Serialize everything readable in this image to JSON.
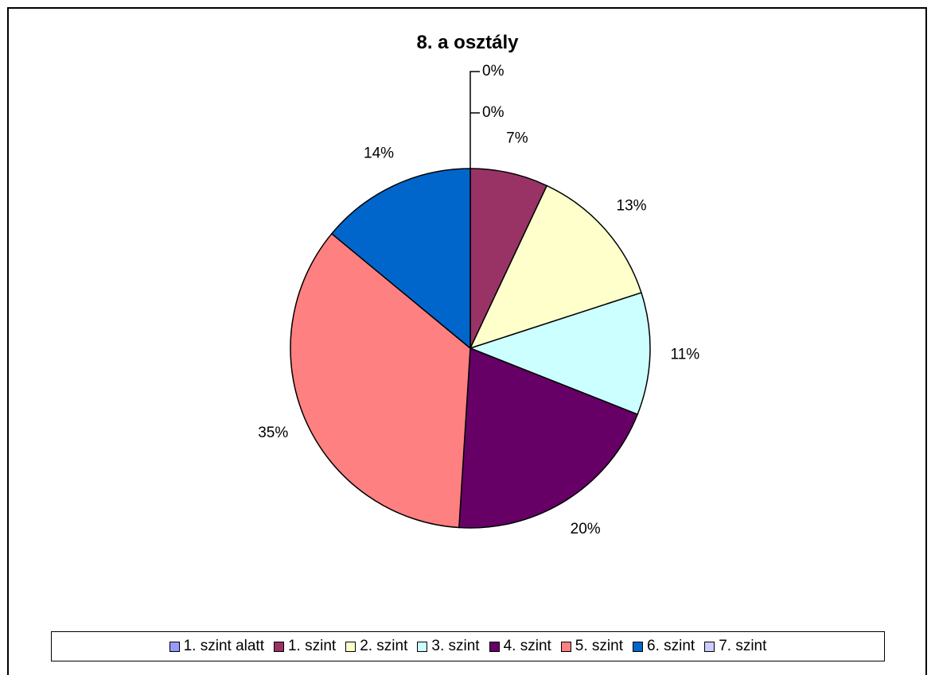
{
  "chart_data": {
    "type": "pie",
    "title": "8. a osztály",
    "slices": [
      {
        "label": "1. szint alatt",
        "value": 0,
        "display": "0%",
        "color": "#9999FF"
      },
      {
        "label": "1. szint",
        "value": 7,
        "display": "7%",
        "color": "#993366"
      },
      {
        "label": "2. szint",
        "value": 13,
        "display": "13%",
        "color": "#FFFFCC"
      },
      {
        "label": "3. szint",
        "value": 11,
        "display": "11%",
        "color": "#CCFFFF"
      },
      {
        "label": "4. szint",
        "value": 20,
        "display": "20%",
        "color": "#660066"
      },
      {
        "label": "5. szint",
        "value": 35,
        "display": "35%",
        "color": "#FF8080"
      },
      {
        "label": "6. szint",
        "value": 14,
        "display": "14%",
        "color": "#0066CC"
      },
      {
        "label": "7. szint",
        "value": 0,
        "display": "0%",
        "color": "#CCCCFF"
      }
    ],
    "legend_position": "bottom"
  }
}
